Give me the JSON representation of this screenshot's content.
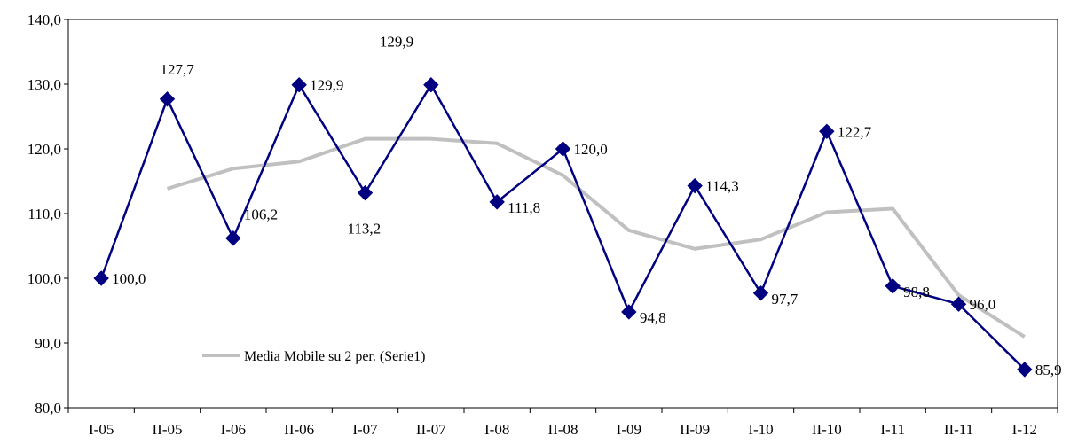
{
  "chart_data": {
    "type": "line",
    "title": "",
    "xlabel": "",
    "ylabel": "",
    "categories": [
      "I-05",
      "II-05",
      "I-06",
      "II-06",
      "I-07",
      "II-07",
      "I-08",
      "II-08",
      "I-09",
      "II-09",
      "I-10",
      "II-10",
      "I-11",
      "II-11",
      "I-12"
    ],
    "ylim": [
      80,
      140
    ],
    "yticks": [
      "80,0",
      "90,0",
      "100,0",
      "110,0",
      "120,0",
      "130,0",
      "140,0"
    ],
    "grid": false,
    "series": [
      {
        "name": "",
        "color": "#000080",
        "marker": "diamond",
        "values": [
          100.0,
          127.7,
          106.2,
          129.9,
          113.2,
          129.9,
          111.8,
          120.0,
          94.8,
          114.3,
          97.7,
          122.7,
          98.8,
          96.0,
          85.9
        ],
        "labels": [
          "100,0",
          "127,7",
          "106,2",
          "129,9",
          "113,2",
          "129,9",
          "111,8",
          "120,0",
          "94,8",
          "114,3",
          "97,7",
          "122,7",
          "98,8",
          "96,0",
          "85,9"
        ]
      },
      {
        "name": "Media Mobile su 2 per. (Serie1)",
        "color": "#c0c0c0",
        "values": [
          null,
          113.85,
          116.95,
          118.05,
          121.55,
          121.55,
          120.85,
          115.9,
          107.4,
          104.55,
          106.0,
          110.2,
          110.75,
          97.4,
          90.95
        ]
      }
    ],
    "legend": {
      "position": "bottom-left",
      "label": "Media Mobile su 2 per. (Serie1)"
    }
  }
}
